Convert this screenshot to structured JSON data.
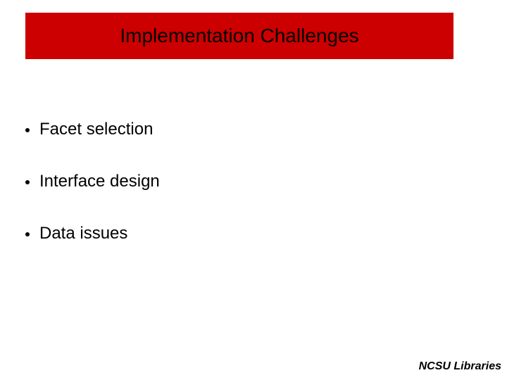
{
  "slide": {
    "title": "Implementation Challenges",
    "title_bar_color": "#cc0000",
    "title_text_color": "#000000",
    "background_color": "#ffffff",
    "bullets": [
      {
        "text": "Facet selection"
      },
      {
        "text": "Interface design"
      },
      {
        "text": "Data issues"
      }
    ],
    "bullet_fontsize": 24,
    "title_fontsize": 28,
    "footer": "NCSU Libraries",
    "footer_fontsize": 16
  }
}
